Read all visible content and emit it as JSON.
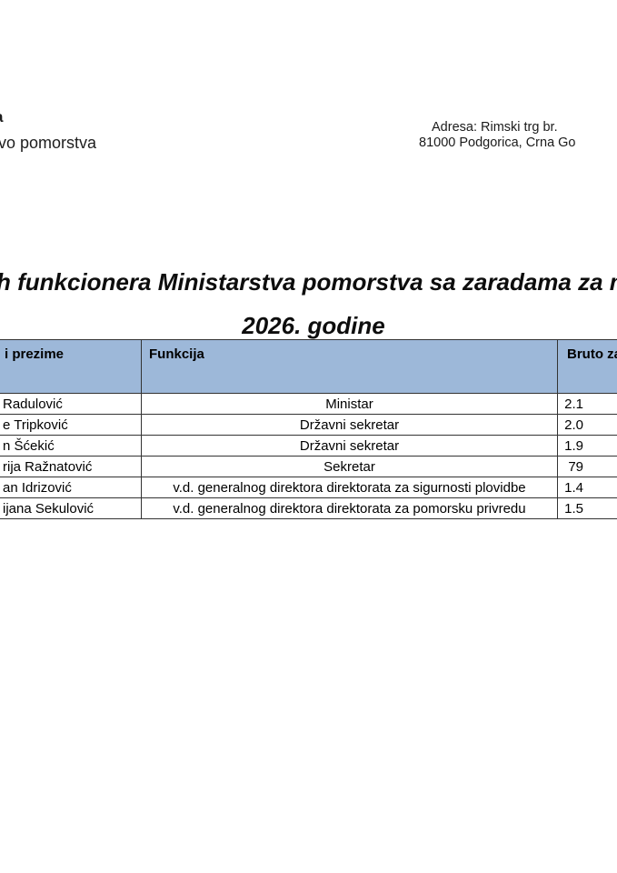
{
  "letterhead": {
    "logo_line1_fragment": "a",
    "logo_line2_fragment": "vo pomorstva",
    "address_line1": "Adresa: Rimski trg br.",
    "address_line2": "81000 Podgorica, Crna Go"
  },
  "title": {
    "line1": "h funkcionera Ministarstva pomorstva sa zaradama za mj",
    "line2": "2026. godine"
  },
  "table": {
    "header_bg": "#9db8d9",
    "border_color": "#333333",
    "headers": {
      "name": "i prezime",
      "function": "Funkcija",
      "salary": "Bruto zar"
    },
    "rows": [
      {
        "name": "Radulović",
        "function": "Ministar",
        "salary": "2.1"
      },
      {
        "name": "e Tripković",
        "function": "Državni sekretar",
        "salary": "2.0"
      },
      {
        "name": "n Šćekić",
        "function": "Državni sekretar",
        "salary": "1.9"
      },
      {
        "name": "rija Ražnatović",
        "function": "Sekretar",
        "salary": "79"
      },
      {
        "name": "an Idrizović",
        "function": "v.d. generalnog direktora direktorata za sigurnosti plovidbe",
        "salary": "1.4"
      },
      {
        "name": "ijana Sekulović",
        "function": "v.d. generalnog direktora direktorata za pomorsku privredu",
        "salary": "1.5"
      }
    ]
  }
}
